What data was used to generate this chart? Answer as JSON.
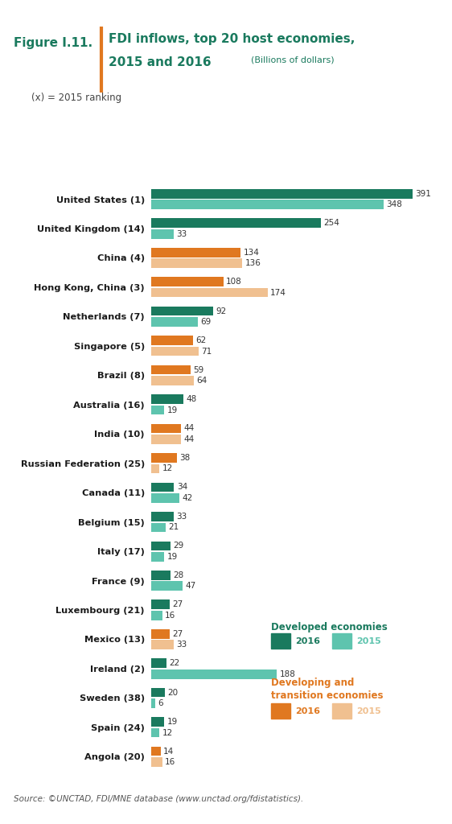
{
  "title_figure": "Figure I.11.",
  "title_main_line1": "FDI inflows, top 20 host economies,",
  "title_main_line2": "2015 and 2016",
  "title_sub": "(Billions of dollars)",
  "subtitle_note": "(x) = 2015 ranking",
  "source_text": "Source: ©UNCTAD, FDI/MNE database (www.unctad.org/fdistatistics).",
  "countries": [
    "United States (1)",
    "United Kingdom (14)",
    "China (4)",
    "Hong Kong, China (3)",
    "Netherlands (7)",
    "Singapore (5)",
    "Brazil (8)",
    "Australia (16)",
    "India (10)",
    "Russian Federation (25)",
    "Canada (11)",
    "Belgium (15)",
    "Italy (17)",
    "France (9)",
    "Luxembourg (21)",
    "Mexico (13)",
    "Ireland (2)",
    "Sweden (38)",
    "Spain (24)",
    "Angola (20)"
  ],
  "val_2016": [
    391,
    254,
    134,
    108,
    92,
    62,
    59,
    48,
    44,
    38,
    34,
    33,
    29,
    28,
    27,
    27,
    22,
    20,
    19,
    14
  ],
  "val_2015": [
    348,
    33,
    136,
    174,
    69,
    71,
    64,
    19,
    44,
    12,
    42,
    21,
    19,
    47,
    16,
    33,
    188,
    6,
    12,
    16
  ],
  "economy_type": [
    "developed",
    "developed",
    "developing",
    "developing",
    "developed",
    "developing",
    "developing",
    "developed",
    "developing",
    "developing",
    "developed",
    "developed",
    "developed",
    "developed",
    "developed",
    "developing",
    "developed",
    "developed",
    "developed",
    "developing"
  ],
  "color_dev_2016": "#1a7a5e",
  "color_dev_2015": "#5ec4ae",
  "color_devg_2016": "#e07820",
  "color_devg_2015": "#f0c090",
  "bg_color": "#ffffff",
  "title_color": "#1a7a5e",
  "figure_label_color": "#1a7a5e",
  "orange_line_color": "#e07820",
  "bar_height": 0.32,
  "bar_gap": 0.05,
  "xlim": 430
}
